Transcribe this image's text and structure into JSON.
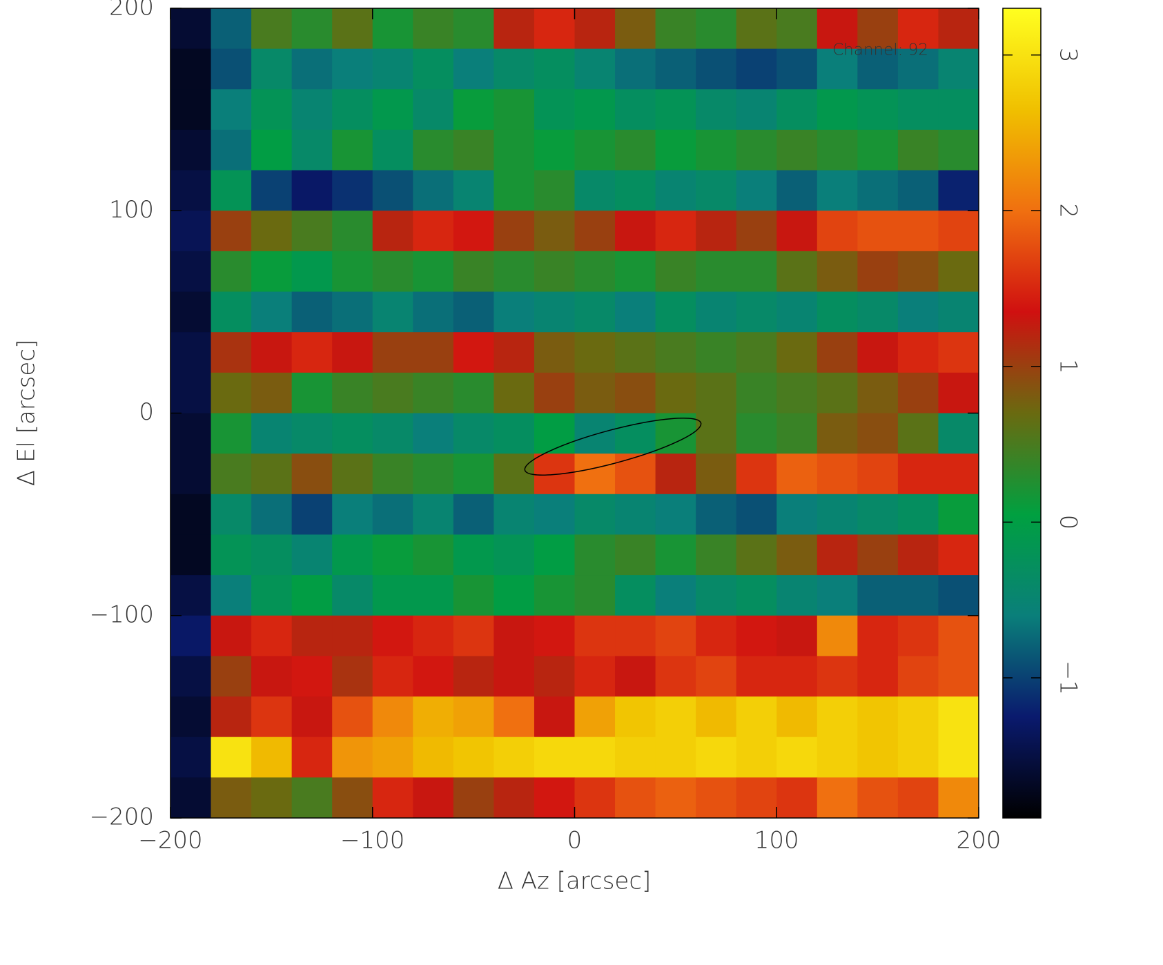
{
  "chart_data": {
    "type": "heatmap",
    "annotation": "Channel: 92",
    "x_label": "Δ Az [arcsec]",
    "y_label": "Δ El [arcsec]",
    "x": [
      -190,
      -170,
      -150,
      -130,
      -110,
      -90,
      -70,
      -50,
      -30,
      -10,
      10,
      30,
      50,
      70,
      90,
      110,
      130,
      150,
      170,
      190
    ],
    "y": [
      190,
      170,
      150,
      130,
      110,
      90,
      70,
      50,
      30,
      10,
      -10,
      -30,
      -50,
      -70,
      -90,
      -110,
      -130,
      -150,
      -170,
      -190
    ],
    "z": [
      [
        -1.6,
        -0.8,
        0.5,
        0.3,
        0.6,
        0.2,
        0.4,
        0.3,
        1.2,
        1.5,
        1.2,
        0.8,
        0.4,
        0.3,
        0.6,
        0.5,
        1.3,
        1.0,
        1.5,
        1.2
      ],
      [
        -1.7,
        -0.9,
        -0.4,
        -0.7,
        -0.6,
        -0.5,
        -0.3,
        -0.6,
        -0.4,
        -0.3,
        -0.5,
        -0.7,
        -0.8,
        -0.9,
        -1.0,
        -0.9,
        -0.6,
        -0.8,
        -0.7,
        -0.5
      ],
      [
        -1.7,
        -0.6,
        -0.2,
        -0.5,
        -0.3,
        -0.1,
        -0.4,
        0.1,
        0.2,
        -0.2,
        -0.1,
        -0.3,
        -0.2,
        -0.4,
        -0.5,
        -0.3,
        -0.1,
        -0.2,
        -0.3,
        -0.3
      ],
      [
        -1.6,
        -0.7,
        0.0,
        -0.4,
        0.2,
        -0.3,
        0.3,
        0.4,
        0.2,
        0.1,
        0.2,
        0.3,
        0.1,
        0.2,
        0.3,
        0.4,
        0.3,
        0.2,
        0.4,
        0.3
      ],
      [
        -1.5,
        -0.2,
        -1.0,
        -1.3,
        -1.1,
        -0.9,
        -0.7,
        -0.5,
        0.2,
        0.3,
        -0.4,
        -0.3,
        -0.5,
        -0.4,
        -0.6,
        -0.8,
        -0.6,
        -0.7,
        -0.8,
        -1.2
      ],
      [
        -1.4,
        1.0,
        0.7,
        0.5,
        0.3,
        1.2,
        1.5,
        1.4,
        1.0,
        0.8,
        1.0,
        1.3,
        1.5,
        1.2,
        1.0,
        1.3,
        1.7,
        1.8,
        1.8,
        1.7
      ],
      [
        -1.5,
        0.3,
        0.1,
        -0.1,
        0.2,
        0.3,
        0.2,
        0.4,
        0.3,
        0.4,
        0.3,
        0.2,
        0.4,
        0.3,
        0.3,
        0.6,
        0.8,
        1.0,
        0.9,
        0.7
      ],
      [
        -1.6,
        -0.3,
        -0.6,
        -0.8,
        -0.7,
        -0.5,
        -0.7,
        -0.8,
        -0.6,
        -0.5,
        -0.4,
        -0.6,
        -0.3,
        -0.5,
        -0.4,
        -0.5,
        -0.3,
        -0.4,
        -0.6,
        -0.5
      ],
      [
        -1.5,
        1.1,
        1.3,
        1.5,
        1.3,
        1.0,
        1.0,
        1.4,
        1.2,
        0.8,
        0.7,
        0.6,
        0.5,
        0.4,
        0.5,
        0.7,
        1.0,
        1.3,
        1.5,
        1.6
      ],
      [
        -1.5,
        0.7,
        0.8,
        0.2,
        0.4,
        0.5,
        0.4,
        0.3,
        0.7,
        1.0,
        0.8,
        0.9,
        0.7,
        0.6,
        0.4,
        0.5,
        0.6,
        0.8,
        1.0,
        1.3
      ],
      [
        -1.6,
        0.2,
        -0.5,
        -0.4,
        -0.3,
        -0.4,
        -0.6,
        -0.4,
        -0.3,
        0.0,
        -0.5,
        -0.3,
        0.2,
        0.6,
        0.3,
        0.4,
        0.8,
        0.9,
        0.6,
        -0.4
      ],
      [
        -1.6,
        0.5,
        0.6,
        0.9,
        0.6,
        0.4,
        0.3,
        0.2,
        0.6,
        1.6,
        2.0,
        1.8,
        1.2,
        0.8,
        1.6,
        1.9,
        1.8,
        1.7,
        1.5,
        1.5
      ],
      [
        -1.7,
        -0.4,
        -0.7,
        -1.0,
        -0.6,
        -0.7,
        -0.5,
        -0.8,
        -0.5,
        -0.6,
        -0.4,
        -0.5,
        -0.6,
        -0.8,
        -0.9,
        -0.6,
        -0.5,
        -0.4,
        -0.3,
        0.1
      ],
      [
        -1.7,
        -0.2,
        -0.3,
        -0.5,
        -0.1,
        0.1,
        0.2,
        -0.1,
        -0.2,
        0.0,
        0.3,
        0.4,
        0.2,
        0.4,
        0.6,
        0.8,
        1.2,
        1.0,
        1.2,
        1.5
      ],
      [
        -1.5,
        -0.6,
        -0.2,
        0.0,
        -0.4,
        -0.1,
        -0.1,
        0.2,
        0.0,
        0.2,
        0.3,
        -0.3,
        -0.6,
        -0.4,
        -0.3,
        -0.5,
        -0.6,
        -0.8,
        -0.8,
        -0.9
      ],
      [
        -1.3,
        1.3,
        1.5,
        1.2,
        1.2,
        1.4,
        1.5,
        1.6,
        1.3,
        1.4,
        1.6,
        1.6,
        1.7,
        1.5,
        1.4,
        1.3,
        2.2,
        1.5,
        1.6,
        1.8
      ],
      [
        -1.5,
        1.0,
        1.3,
        1.4,
        1.1,
        1.5,
        1.4,
        1.2,
        1.3,
        1.2,
        1.5,
        1.3,
        1.6,
        1.7,
        1.5,
        1.5,
        1.6,
        1.5,
        1.7,
        1.8
      ],
      [
        -1.6,
        1.2,
        1.6,
        1.3,
        1.8,
        2.2,
        2.5,
        2.4,
        2.0,
        1.3,
        2.4,
        2.7,
        2.8,
        2.6,
        2.8,
        2.6,
        2.8,
        2.7,
        2.8,
        3.0
      ],
      [
        -1.5,
        3.0,
        2.6,
        1.5,
        2.3,
        2.4,
        2.6,
        2.7,
        2.8,
        2.9,
        2.9,
        2.8,
        2.8,
        2.9,
        2.8,
        2.9,
        2.8,
        2.7,
        2.8,
        3.0
      ],
      [
        -1.6,
        0.8,
        0.7,
        0.5,
        0.9,
        1.5,
        1.3,
        1.0,
        1.2,
        1.4,
        1.6,
        1.8,
        1.9,
        1.8,
        1.7,
        1.6,
        2.0,
        1.8,
        1.7,
        2.2
      ]
    ],
    "xlim": [
      -200,
      200
    ],
    "ylim": [
      -200,
      200
    ],
    "xticks": [
      {
        "value": -200,
        "label": "−200"
      },
      {
        "value": -100,
        "label": "−100"
      },
      0,
      100,
      200
    ],
    "yticks": [
      {
        "value": -200,
        "label": "−200"
      },
      {
        "value": -100,
        "label": "−100"
      },
      0,
      100,
      200
    ],
    "zlim": [
      -1.9,
      3.3
    ],
    "zticks": [
      {
        "value": -1,
        "label": "−1"
      },
      0,
      1,
      2,
      3
    ],
    "colorscale": [
      "#000000",
      "#0a1a6e",
      "#0a7f7a",
      "#00a040",
      "#6a6a10",
      "#d01010",
      "#f07010",
      "#f0c000",
      "#ffff20"
    ],
    "annotation_color": "#30c8c8"
  }
}
